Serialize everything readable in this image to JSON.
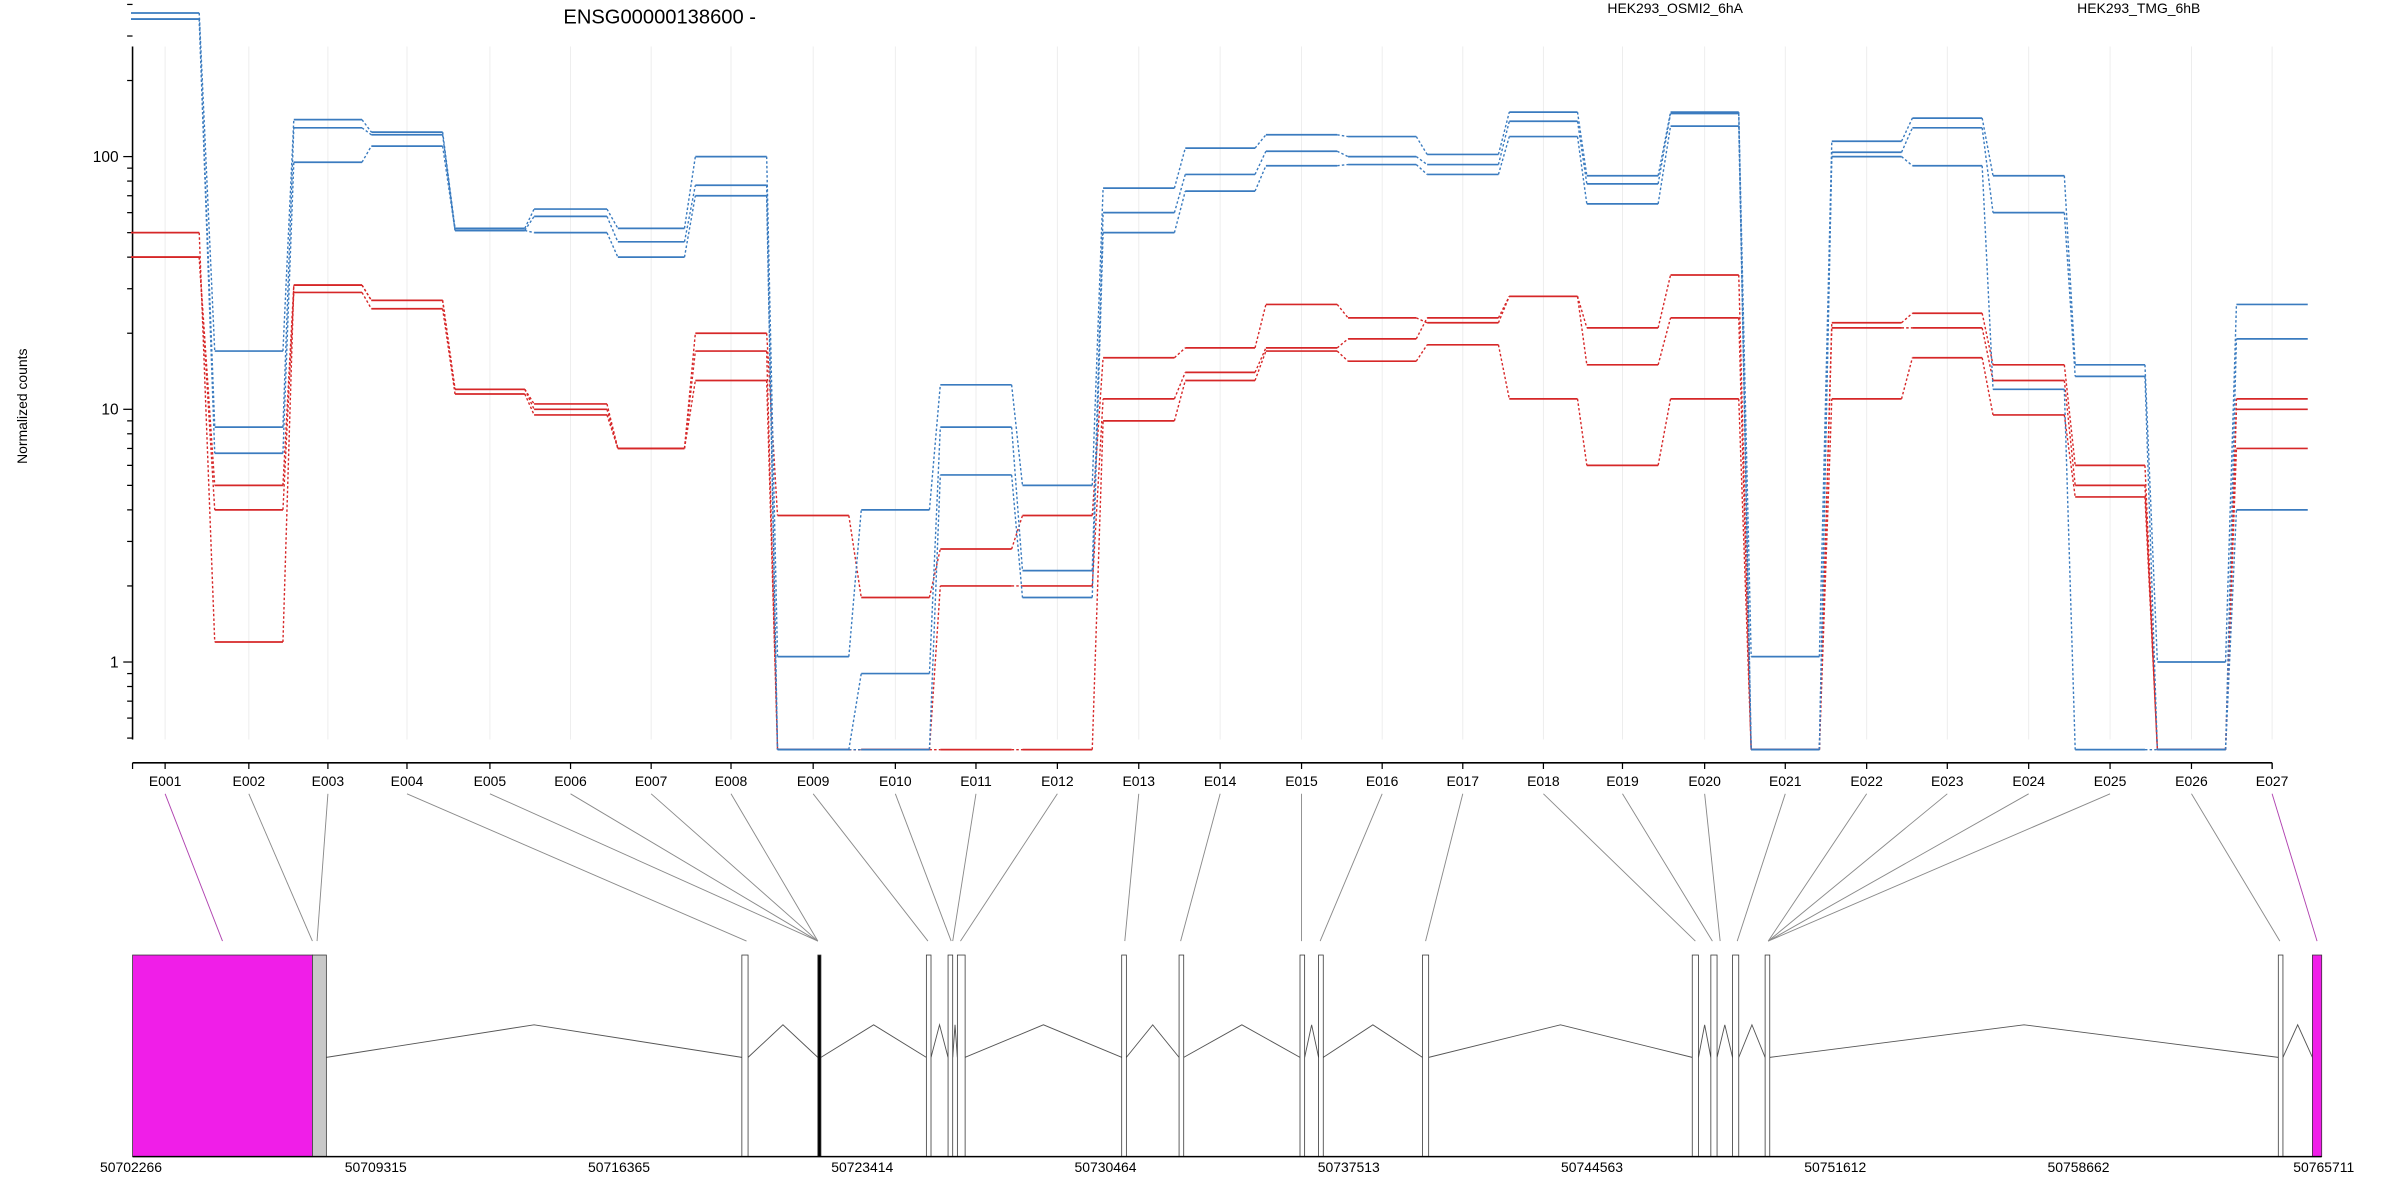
{
  "chart_data": {
    "type": "line",
    "title": "ENSG00000138600 -",
    "ylabel": "Normalized counts",
    "yscale": "log",
    "ylim": [
      0.45,
      500
    ],
    "yticks": [
      {
        "value": 1,
        "label": "1"
      },
      {
        "value": 10,
        "label": "10"
      },
      {
        "value": 100,
        "label": "100"
      }
    ],
    "categories": [
      "E001",
      "E002",
      "E003",
      "E004",
      "E005",
      "E006",
      "E007",
      "E008",
      "E009",
      "E010",
      "E011",
      "E012",
      "E013",
      "E014",
      "E015",
      "E016",
      "E017",
      "E018",
      "E019",
      "E020",
      "E021",
      "E022",
      "E023",
      "E024",
      "E025",
      "E026",
      "E027"
    ],
    "legend": [
      {
        "label": "HEK293_OSMI2_6hA",
        "color": "#d62728"
      },
      {
        "label": "HEK293_TMG_6hB",
        "color": "#3a7bbf"
      }
    ],
    "series": [
      {
        "group": 0,
        "color": "#d62728",
        "values": [
          50,
          1.2,
          31,
          27,
          12,
          10.5,
          7,
          20,
          3.8,
          1.8,
          2.8,
          3.8,
          16,
          17.5,
          26,
          23,
          22,
          28,
          21,
          34,
          0.45,
          22,
          24,
          15,
          6,
          0.45,
          11
        ]
      },
      {
        "group": 0,
        "color": "#d62728",
        "values": [
          40,
          5,
          31,
          27,
          12,
          10,
          7,
          17,
          0.45,
          0.45,
          2,
          2,
          11,
          14,
          17.5,
          19,
          23,
          28,
          15,
          23,
          0.45,
          21,
          21,
          13,
          5,
          0.45,
          10
        ]
      },
      {
        "group": 0,
        "color": "#d62728",
        "values": [
          40,
          4,
          29,
          25,
          11.5,
          9.5,
          7,
          13,
          0.45,
          0.45,
          0.45,
          0.45,
          9,
          13,
          17,
          15.5,
          18,
          11,
          6,
          11,
          0.45,
          11,
          16,
          9.5,
          4.5,
          0.45,
          7
        ]
      },
      {
        "group": 1,
        "color": "#3a7bbf",
        "values": [
          370,
          17,
          140,
          125,
          52,
          62,
          52,
          100,
          1.05,
          4,
          12.5,
          5,
          75,
          108,
          122,
          120,
          102,
          150,
          84,
          150,
          1.05,
          115,
          142,
          84,
          15,
          1,
          26
        ]
      },
      {
        "group": 1,
        "color": "#3a7bbf",
        "values": [
          350,
          8.5,
          130,
          122,
          51,
          58,
          46,
          77,
          0.45,
          0.9,
          8.5,
          2.3,
          60,
          85,
          105,
          100,
          93,
          138,
          78,
          148,
          0.45,
          104,
          130,
          60,
          13.5,
          0.45,
          19
        ]
      },
      {
        "group": 1,
        "color": "#3a7bbf",
        "values": [
          350,
          6.7,
          95,
          110,
          51,
          50,
          40,
          70,
          0.45,
          0.45,
          5.5,
          1.8,
          50,
          73,
          92,
          93,
          85,
          120,
          65,
          132,
          0.45,
          100,
          92,
          12,
          0.45,
          0.45,
          4
        ]
      }
    ],
    "exon_segments": [
      [
        84,
        128
      ],
      [
        138,
        182
      ],
      [
        189,
        233
      ],
      [
        239,
        285
      ],
      [
        293,
        338
      ],
      [
        344,
        391
      ],
      [
        398,
        441
      ],
      [
        448,
        494
      ],
      [
        501,
        547
      ],
      [
        555,
        599
      ],
      [
        606,
        652
      ],
      [
        659,
        704
      ],
      [
        711,
        757
      ],
      [
        764,
        809
      ],
      [
        816,
        862
      ],
      [
        869,
        913
      ],
      [
        920,
        966
      ],
      [
        973,
        1017
      ],
      [
        1023,
        1069
      ],
      [
        1077,
        1121
      ],
      [
        1129,
        1173
      ],
      [
        1181,
        1226
      ],
      [
        1233,
        1278
      ],
      [
        1285,
        1331
      ],
      [
        1338,
        1383
      ],
      [
        1391,
        1435
      ],
      [
        1442,
        1488
      ]
    ],
    "gene_model": {
      "coordinates": [
        "50702266",
        "50709315",
        "50716365",
        "50723414",
        "50730464",
        "50737513",
        "50744563",
        "50751612",
        "50758662",
        "50765711"
      ],
      "highlight_color": "#f01ee8"
    }
  }
}
